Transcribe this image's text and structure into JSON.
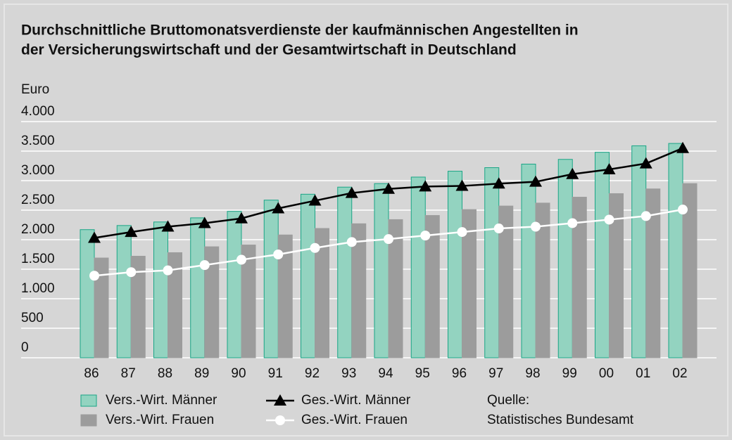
{
  "chart_data": {
    "type": "bar",
    "title": [
      "Durchschnittliche Bruttomonatsverdienste der kaufmännischen Angestellten in",
      "der Versicherungswirtschaft und der Gesamtwirtschaft in Deutschland"
    ],
    "y_label": "Euro",
    "categories": [
      "86",
      "87",
      "88",
      "89",
      "90",
      "91",
      "92",
      "93",
      "94",
      "95",
      "96",
      "97",
      "98",
      "99",
      "00",
      "01",
      "02"
    ],
    "series": [
      {
        "name": "Vers.-Wirt. Männer",
        "type": "bar",
        "color": "#93d3c0",
        "stroke": "#1aa586",
        "values": [
          2170,
          2240,
          2300,
          2370,
          2480,
          2670,
          2770,
          2890,
          2950,
          3060,
          3160,
          3220,
          3280,
          3360,
          3480,
          3590,
          3630
        ]
      },
      {
        "name": "Vers.-Wirt. Frauen",
        "type": "bar",
        "color": "#9c9c9c",
        "stroke": "#9c9c9c",
        "values": [
          1690,
          1720,
          1780,
          1880,
          1910,
          2080,
          2190,
          2270,
          2340,
          2410,
          2510,
          2570,
          2620,
          2720,
          2780,
          2860,
          2950
        ]
      },
      {
        "name": "Ges.-Wirt. Männer",
        "type": "line",
        "color": "#000000",
        "marker": "triangle",
        "values": [
          2030,
          2130,
          2220,
          2280,
          2360,
          2530,
          2660,
          2790,
          2860,
          2900,
          2910,
          2950,
          2980,
          3110,
          3190,
          3290,
          3550
        ]
      },
      {
        "name": "Ges.-Wirt. Frauen",
        "type": "line",
        "color": "#ffffff",
        "marker": "circle",
        "values": [
          1390,
          1450,
          1480,
          1570,
          1660,
          1750,
          1860,
          1960,
          2010,
          2070,
          2130,
          2190,
          2220,
          2280,
          2340,
          2400,
          2510
        ]
      }
    ],
    "ylim": [
      0,
      4000
    ],
    "yticks": [
      0,
      500,
      {
        "value": 1000,
        "label": "1.000"
      },
      {
        "value": 1500,
        "label": "1.500"
      },
      {
        "value": 2000,
        "label": "2.000"
      },
      {
        "value": 2500,
        "label": "2.500"
      },
      {
        "value": 3000,
        "label": "3.000"
      },
      {
        "value": 3500,
        "label": "3.500"
      },
      {
        "value": 4000,
        "label": "4.000"
      }
    ],
    "grid": true,
    "source": [
      "Quelle:",
      "Statistisches Bundesamt"
    ]
  }
}
